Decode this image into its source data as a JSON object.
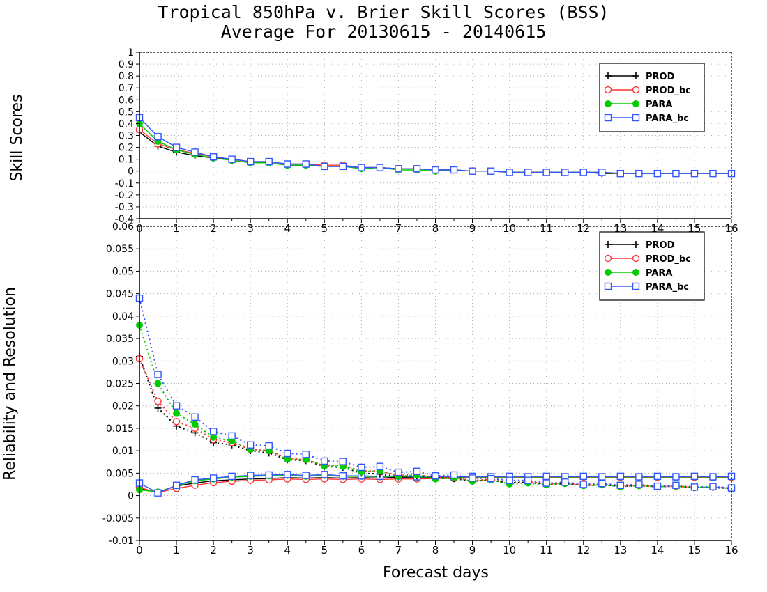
{
  "title": {
    "line1": "Tropical 850hPa v. Brier Skill Scores (BSS)",
    "line2": "Average For 20130615 - 20140615"
  },
  "chart_data": [
    {
      "type": "line",
      "ylabel": "Skill Scores",
      "xlabel": "",
      "xlim": [
        0,
        16
      ],
      "ylim": [
        -0.4,
        1
      ],
      "x_ticks": [
        "0",
        "1",
        "2",
        "3",
        "4",
        "5",
        "6",
        "7",
        "8",
        "9",
        "10",
        "11",
        "12",
        "13",
        "14",
        "15",
        "16"
      ],
      "y_ticks": [
        "1",
        "0.9",
        "0.8",
        "0.7",
        "0.6",
        "0.5",
        "0.4",
        "0.3",
        "0.2",
        "0.1",
        "0",
        "-0.1",
        "-0.2",
        "-0.3",
        "-0.4"
      ],
      "grid": true,
      "legend": "top-right",
      "x": [
        0,
        0.5,
        1,
        1.5,
        2,
        2.5,
        3,
        3.5,
        4,
        4.5,
        5,
        5.5,
        6,
        6.5,
        7,
        7.5,
        8,
        8.5,
        9,
        9.5,
        10,
        10.5,
        11,
        11.5,
        12,
        12.5,
        13,
        13.5,
        14,
        14.5,
        15,
        15.5,
        16
      ],
      "series": [
        {
          "name": "PROD",
          "color": "#000000",
          "marker": "plus",
          "values": [
            0.33,
            0.21,
            0.16,
            0.13,
            0.11,
            0.1,
            0.08,
            0.07,
            0.05,
            0.05,
            0.04,
            0.04,
            0.03,
            0.03,
            0.02,
            0.02,
            0.01,
            0.01,
            0.0,
            0.0,
            -0.01,
            -0.01,
            -0.01,
            -0.01,
            -0.01,
            -0.02,
            -0.02,
            -0.02,
            -0.02,
            -0.02,
            -0.02,
            -0.02,
            -0.02
          ]
        },
        {
          "name": "PROD_bc",
          "color": "#ff3333",
          "marker": "circle-open",
          "values": [
            0.35,
            0.23,
            0.18,
            0.15,
            0.12,
            0.1,
            0.08,
            0.08,
            0.06,
            0.06,
            0.05,
            0.05,
            0.03,
            0.03,
            0.02,
            0.02,
            0.01,
            0.01,
            0.0,
            0.0,
            -0.01,
            -0.01,
            -0.01,
            -0.01,
            -0.01,
            -0.01,
            -0.02,
            -0.02,
            -0.02,
            -0.02,
            -0.02,
            -0.02,
            -0.02
          ]
        },
        {
          "name": "PARA",
          "color": "#00cc00",
          "marker": "circle-filled",
          "values": [
            0.4,
            0.25,
            0.18,
            0.14,
            0.11,
            0.09,
            0.07,
            0.07,
            0.05,
            0.05,
            0.04,
            0.04,
            0.02,
            0.03,
            0.01,
            0.01,
            0.0,
            0.01,
            0.0,
            0.0,
            -0.01,
            -0.01,
            -0.01,
            -0.01,
            -0.01,
            -0.01,
            -0.02,
            -0.02,
            -0.02,
            -0.02,
            -0.02,
            -0.02,
            -0.02
          ]
        },
        {
          "name": "PARA_bc",
          "color": "#3355ff",
          "marker": "square-open",
          "values": [
            0.45,
            0.29,
            0.2,
            0.16,
            0.12,
            0.1,
            0.08,
            0.08,
            0.06,
            0.06,
            0.04,
            0.04,
            0.03,
            0.03,
            0.02,
            0.02,
            0.01,
            0.01,
            0.0,
            0.0,
            -0.01,
            -0.01,
            -0.01,
            -0.01,
            -0.01,
            -0.01,
            -0.02,
            -0.02,
            -0.02,
            -0.02,
            -0.02,
            -0.02,
            -0.02
          ]
        }
      ]
    },
    {
      "type": "line",
      "ylabel": "Reliability and Resolution",
      "xlabel": "Forecast days",
      "xlim": [
        0,
        16
      ],
      "ylim": [
        -0.01,
        0.06
      ],
      "x_ticks": [
        "0",
        "1",
        "2",
        "3",
        "4",
        "5",
        "6",
        "7",
        "8",
        "9",
        "10",
        "11",
        "12",
        "13",
        "14",
        "15",
        "16"
      ],
      "y_ticks": [
        "0.06",
        "0.055",
        "0.05",
        "0.045",
        "0.04",
        "0.035",
        "0.03",
        "0.025",
        "0.02",
        "0.015",
        "0.01",
        "0.005",
        "0",
        "-0.005",
        "-0.01"
      ],
      "grid": true,
      "legend": "top-right",
      "x": [
        0,
        0.5,
        1,
        1.5,
        2,
        2.5,
        3,
        3.5,
        4,
        4.5,
        5,
        5.5,
        6,
        6.5,
        7,
        7.5,
        8,
        8.5,
        9,
        9.5,
        10,
        10.5,
        11,
        11.5,
        12,
        12.5,
        13,
        13.5,
        14,
        14.5,
        15,
        15.5,
        16
      ],
      "series": [
        {
          "name": "PROD",
          "color": "#000000",
          "marker": "plus",
          "line": "solid",
          "values": [
            0.0015,
            0.0008,
            0.0021,
            0.0028,
            0.0033,
            0.0035,
            0.0037,
            0.0038,
            0.004,
            0.0039,
            0.004,
            0.0039,
            0.004,
            0.0039,
            0.0041,
            0.004,
            0.0041,
            0.004,
            0.0041,
            0.004,
            0.0041,
            0.004,
            0.0041,
            0.004,
            0.0041,
            0.004,
            0.0041,
            0.004,
            0.0041,
            0.004,
            0.0041,
            0.004,
            0.0041
          ]
        },
        {
          "name": "PROD_bc",
          "color": "#ff3333",
          "marker": "circle-open",
          "line": "solid",
          "values": [
            0.0018,
            0.0007,
            0.0016,
            0.0023,
            0.0029,
            0.0032,
            0.0034,
            0.0035,
            0.0037,
            0.0036,
            0.0037,
            0.0036,
            0.0037,
            0.0036,
            0.0037,
            0.0037,
            0.0038,
            0.0038,
            0.004,
            0.0039,
            0.0041,
            0.004,
            0.0041,
            0.004,
            0.0041,
            0.004,
            0.0041,
            0.004,
            0.0041,
            0.004,
            0.0041,
            0.004,
            0.0041
          ]
        },
        {
          "name": "PARA",
          "color": "#00cc00",
          "marker": "circle-filled",
          "line": "solid",
          "values": [
            0.0013,
            0.0008,
            0.0022,
            0.0033,
            0.0037,
            0.0041,
            0.0043,
            0.0044,
            0.0045,
            0.0043,
            0.0045,
            0.0043,
            0.0043,
            0.0042,
            0.0043,
            0.0041,
            0.0042,
            0.0041,
            0.0042,
            0.0041,
            0.0042,
            0.0041,
            0.0042,
            0.0041,
            0.0042,
            0.0041,
            0.0042,
            0.0041,
            0.0042,
            0.0041,
            0.0042,
            0.0041,
            0.0042
          ]
        },
        {
          "name": "PARA_bc",
          "color": "#3355ff",
          "marker": "square-open",
          "line": "solid",
          "values": [
            0.0028,
            0.0006,
            0.0023,
            0.0035,
            0.0039,
            0.0043,
            0.0045,
            0.0046,
            0.0047,
            0.0045,
            0.0047,
            0.0044,
            0.0044,
            0.0043,
            0.0044,
            0.0042,
            0.0043,
            0.0042,
            0.0043,
            0.0042,
            0.0043,
            0.0042,
            0.0043,
            0.0042,
            0.0043,
            0.0042,
            0.0043,
            0.0042,
            0.0043,
            0.0042,
            0.0043,
            0.0042,
            0.0043
          ]
        },
        {
          "name": "PROD",
          "color": "#000000",
          "marker": "plus",
          "line": "dotted",
          "legend": false,
          "values": [
            0.031,
            0.0195,
            0.0155,
            0.014,
            0.0118,
            0.0113,
            0.01,
            0.0095,
            0.008,
            0.0078,
            0.0065,
            0.0063,
            0.005,
            0.0048,
            0.0042,
            0.0044,
            0.004,
            0.0038,
            0.0032,
            0.0035,
            0.0028,
            0.003,
            0.0025,
            0.0027,
            0.0023,
            0.0024,
            0.0021,
            0.0022,
            0.002,
            0.0021,
            0.0018,
            0.0018,
            0.0016
          ]
        },
        {
          "name": "PROD_bc",
          "color": "#ff3333",
          "marker": "circle-open",
          "line": "dotted",
          "legend": false,
          "values": [
            0.0305,
            0.021,
            0.0165,
            0.015,
            0.0125,
            0.0118,
            0.0103,
            0.01,
            0.0083,
            0.008,
            0.0067,
            0.0068,
            0.0055,
            0.0055,
            0.0045,
            0.0047,
            0.004,
            0.004,
            0.0034,
            0.0036,
            0.003,
            0.0031,
            0.0026,
            0.0028,
            0.0024,
            0.0025,
            0.0022,
            0.0023,
            0.002,
            0.0021,
            0.0018,
            0.0019,
            0.0016
          ]
        },
        {
          "name": "PARA",
          "color": "#00cc00",
          "marker": "circle-filled",
          "line": "dotted",
          "legend": false,
          "values": [
            0.038,
            0.025,
            0.0183,
            0.0159,
            0.013,
            0.0122,
            0.0103,
            0.01,
            0.0081,
            0.008,
            0.0066,
            0.0065,
            0.0053,
            0.0055,
            0.0043,
            0.0046,
            0.0037,
            0.004,
            0.0032,
            0.0035,
            0.0026,
            0.0028,
            0.0024,
            0.0027,
            0.0022,
            0.0024,
            0.002,
            0.0022,
            0.002,
            0.0021,
            0.0018,
            0.0019,
            0.0016
          ]
        },
        {
          "name": "PARA_bc",
          "color": "#3355ff",
          "marker": "square-open",
          "line": "dotted",
          "legend": false,
          "values": [
            0.044,
            0.027,
            0.02,
            0.0175,
            0.0143,
            0.0133,
            0.0113,
            0.0111,
            0.0094,
            0.0092,
            0.0077,
            0.0076,
            0.0063,
            0.0065,
            0.0052,
            0.0054,
            0.0044,
            0.0046,
            0.0039,
            0.0038,
            0.0034,
            0.0034,
            0.0028,
            0.003,
            0.0025,
            0.0027,
            0.0023,
            0.0025,
            0.0021,
            0.0023,
            0.0019,
            0.002,
            0.0017
          ]
        }
      ]
    }
  ]
}
